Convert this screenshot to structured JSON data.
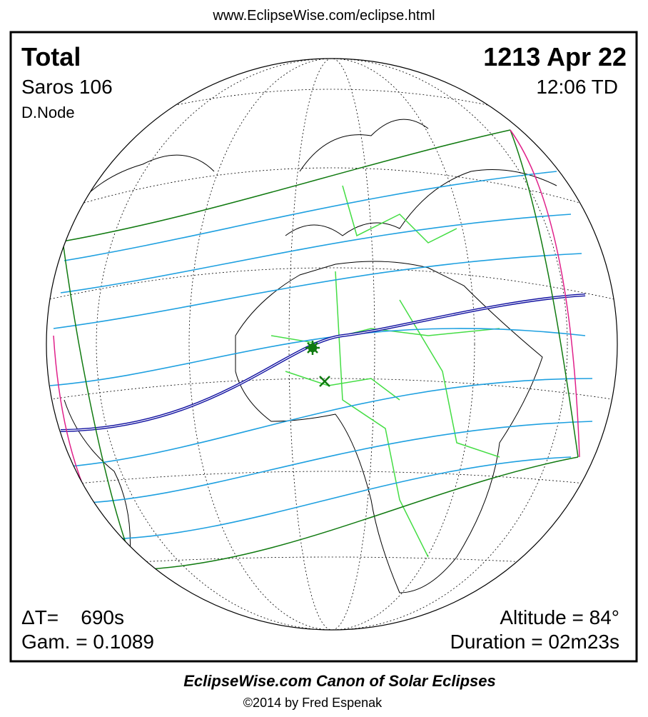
{
  "header": {
    "url": "www.EclipseWise.com/eclipse.html"
  },
  "panel": {
    "eclipse_type": "Total",
    "date": "1213 Apr 22",
    "saros": "Saros 106",
    "time": "12:06 TD",
    "node": "D.Node",
    "delta_t": "ΔT=    690s",
    "gamma": "Gam. = 0.1089",
    "altitude": "Altitude = 84°",
    "duration": "Duration = 02m23s"
  },
  "footer": {
    "title": "EclipseWise.com Canon of Solar Eclipses",
    "copyright": "©2014 by Fred Espenak"
  }
}
